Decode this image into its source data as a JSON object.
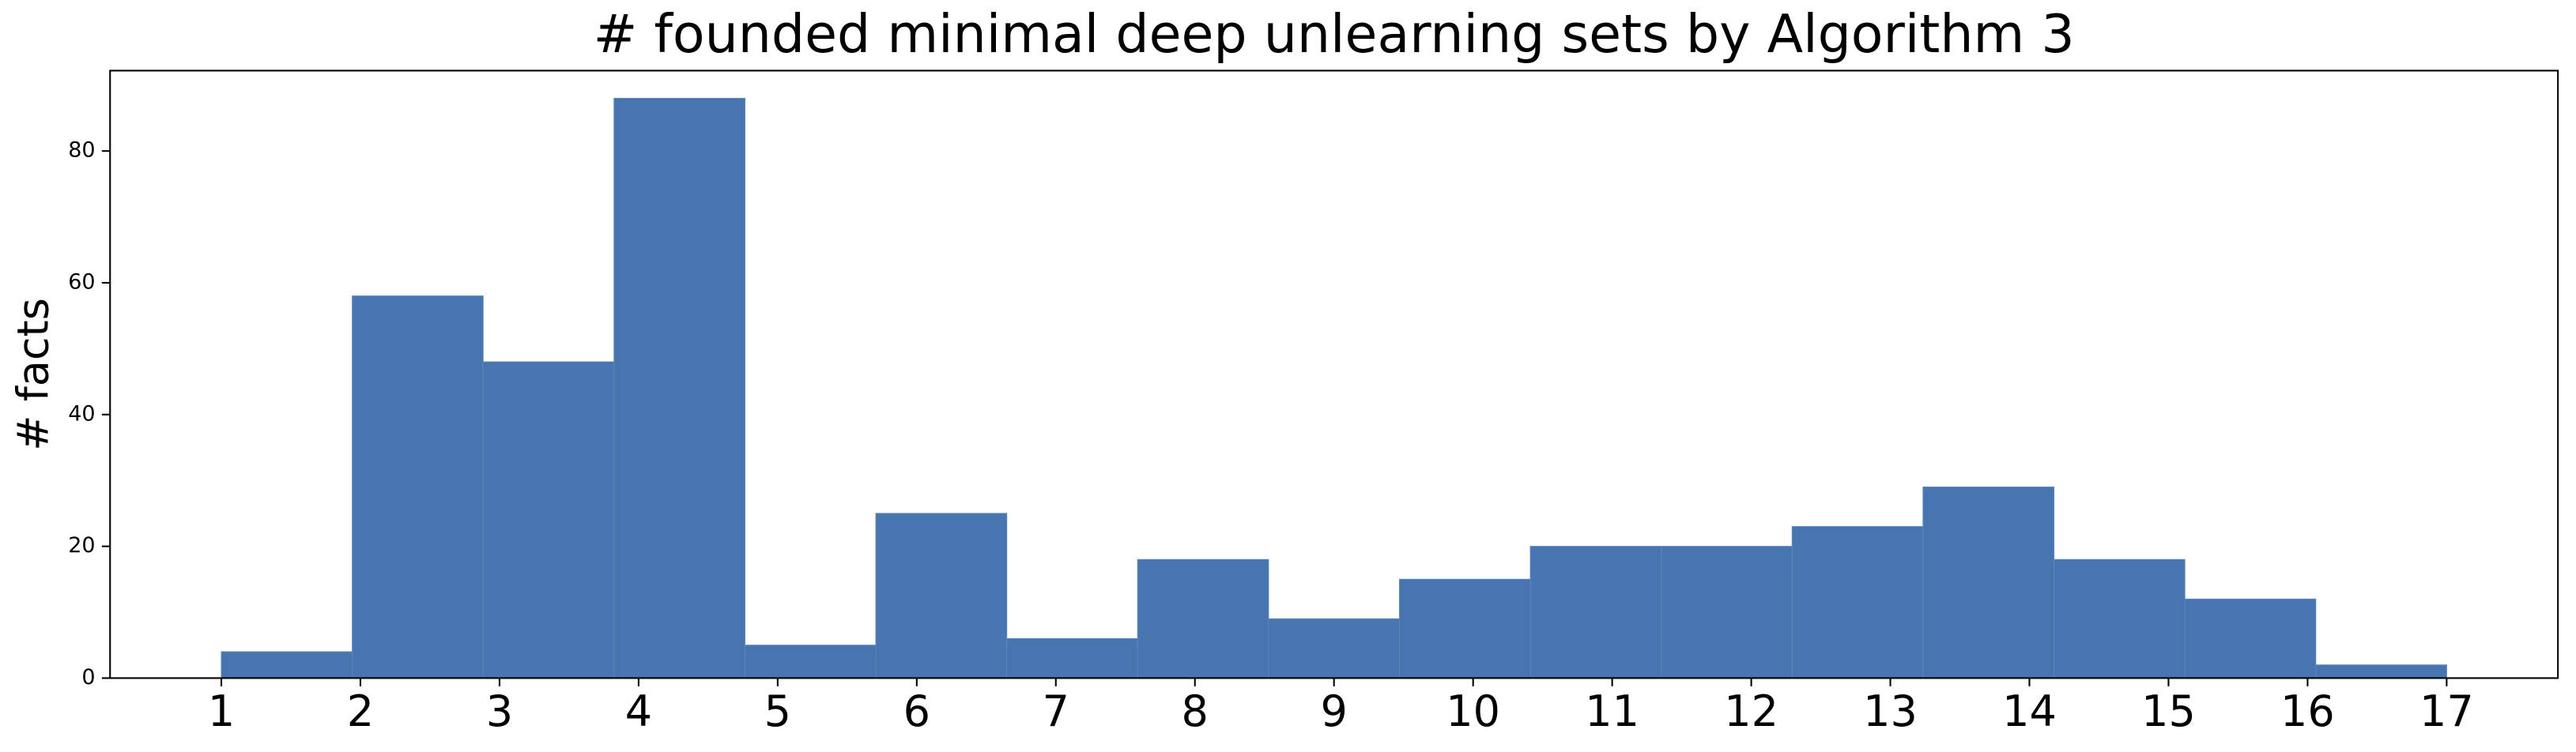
{
  "chart_data": {
    "type": "histogram",
    "title": "# founded minimal deep unlearning sets by Algorithm 3",
    "y_label": "# facts",
    "bins": [
      1,
      1.9412,
      2.8824,
      3.8235,
      4.7647,
      5.7059,
      6.6471,
      7.5882,
      8.5294,
      9.4706,
      10.4118,
      11.3529,
      12.2941,
      13.2353,
      14.1765,
      15.1176,
      16.0588,
      17
    ],
    "values": [
      4,
      58,
      48,
      88,
      5,
      25,
      6,
      18,
      9,
      15,
      20,
      20,
      23,
      29,
      18,
      12,
      2
    ],
    "color": "#4775b0",
    "xlim": [
      0.2,
      17.8
    ],
    "ylim": [
      0,
      92.2
    ],
    "xticks": [
      1,
      2,
      3,
      4,
      5,
      6,
      7,
      8,
      9,
      10,
      11,
      12,
      13,
      14,
      15,
      16,
      17
    ],
    "yticks": [
      0,
      20,
      40,
      60,
      80
    ]
  }
}
